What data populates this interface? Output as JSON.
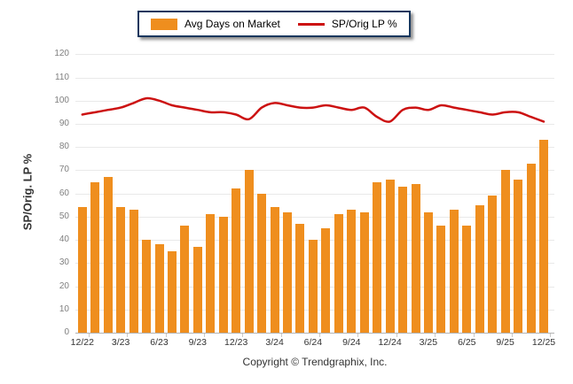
{
  "legend": {
    "items": [
      {
        "label": "Avg Days on Market",
        "type": "bar",
        "color": "#EF8E1E"
      },
      {
        "label": "SP/Orig LP %",
        "type": "line",
        "color": "#CC1111"
      }
    ]
  },
  "y_axis": {
    "title": "SP/Orig. LP %"
  },
  "footer": {
    "text": "Copyright © Trendgraphix, Inc."
  },
  "chart_data": {
    "type": "combo",
    "x": [
      "12/22",
      "1/23",
      "2/23",
      "3/23",
      "4/23",
      "5/23",
      "6/23",
      "7/23",
      "8/23",
      "9/23",
      "10/23",
      "11/23",
      "12/23",
      "1/24",
      "2/24",
      "3/24",
      "4/24",
      "5/24",
      "6/24",
      "7/24",
      "8/24",
      "9/24",
      "10/24",
      "11/24",
      "12/24",
      "1/25",
      "2/25",
      "3/25",
      "4/25",
      "5/25",
      "6/25",
      "7/25",
      "8/25",
      "9/25",
      "10/25",
      "11/25",
      "12/25"
    ],
    "xtick_labels": [
      "12/22",
      "3/23",
      "6/23",
      "9/23",
      "12/23",
      "3/24",
      "6/24",
      "9/24",
      "12/24",
      "3/25",
      "6/25",
      "9/25",
      "12/25"
    ],
    "xtick_every": 3,
    "series": [
      {
        "name": "Avg Days on Market",
        "type": "bar",
        "color": "#EF8E1E",
        "values": [
          54,
          65,
          67,
          54,
          53,
          40,
          38,
          35,
          46,
          37,
          51,
          50,
          62,
          70,
          60,
          54,
          52,
          47,
          40,
          45,
          51,
          53,
          52,
          65,
          66,
          63,
          64,
          52,
          46,
          53,
          46,
          55,
          59,
          70,
          66,
          73,
          83
        ]
      },
      {
        "name": "SP/Orig LP %",
        "type": "line",
        "color": "#CC1111",
        "values": [
          94,
          95,
          96,
          97,
          99,
          101,
          100,
          98,
          97,
          96,
          95,
          95,
          94,
          92,
          97,
          99,
          98,
          97,
          97,
          98,
          97,
          96,
          97,
          93,
          91,
          96,
          97,
          96,
          98,
          97,
          96,
          95,
          94,
          95,
          95,
          93,
          91
        ]
      }
    ],
    "ylabel": "SP/Orig. LP %",
    "ylim": [
      0,
      120
    ],
    "ytick_step": 10,
    "grid": true,
    "legend_position": "top-center"
  },
  "colors": {
    "bar": "#EF8E1E",
    "line": "#CC1111",
    "gridline": "#E9E9E9",
    "axis_line": "#B3B3B3",
    "y_tick_text": "#7F7F7F",
    "x_tick_text": "#333333",
    "legend_border": "#17375E"
  }
}
